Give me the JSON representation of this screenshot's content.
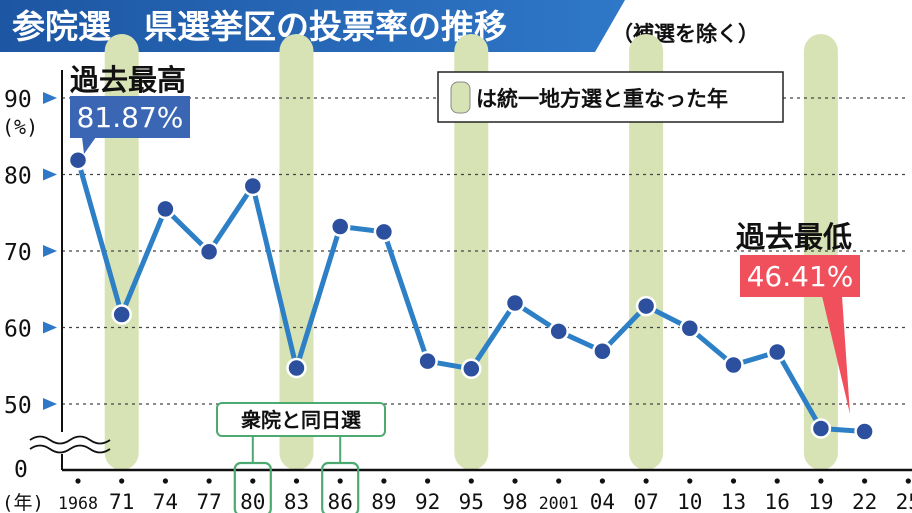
{
  "header": {
    "main_title": "参院選　県選挙区の投票率の推移",
    "sub_title": "（補選を除く）"
  },
  "legend": {
    "text": "は統一地方選と重なった年"
  },
  "annotations": {
    "max_heading": "過去最高",
    "max_value": "81.87%",
    "min_heading": "過去最低",
    "min_value": "46.41%",
    "double_election": "衆院と同日選"
  },
  "colors": {
    "title_bar": "#1f5aa6",
    "title_accent": "#2f78c8",
    "line": "#2d7fc6",
    "marker_fill": "#2c4f9e",
    "band": "#d7e3b4",
    "max_label_bg": "#3a66b4",
    "min_label_bg": "#f0505c",
    "double_box": "#4caa70",
    "grid": "#444444"
  },
  "chart_data": {
    "type": "line",
    "x": [
      "1968",
      "71",
      "74",
      "77",
      "80",
      "83",
      "86",
      "89",
      "92",
      "95",
      "98",
      "2001",
      "04",
      "07",
      "10",
      "13",
      "16",
      "19",
      "22",
      "25"
    ],
    "x_unit_label": "(年)",
    "series": [
      {
        "values": [
          81.87,
          61.7,
          75.5,
          69.9,
          78.5,
          54.7,
          73.2,
          72.5,
          55.6,
          54.6,
          63.2,
          59.5,
          56.9,
          62.8,
          59.9,
          55.1,
          56.8,
          46.8,
          46.41,
          null
        ]
      }
    ],
    "unified_local_election_years": [
      "71",
      "83",
      "95",
      "07",
      "19"
    ],
    "double_election_years": [
      "80",
      "86"
    ],
    "y_ticks": [
      0,
      50,
      60,
      70,
      80,
      90
    ],
    "y_unit_label": "(%)",
    "ylim": [
      0,
      90
    ],
    "y_axis_break": true,
    "grid": true
  }
}
